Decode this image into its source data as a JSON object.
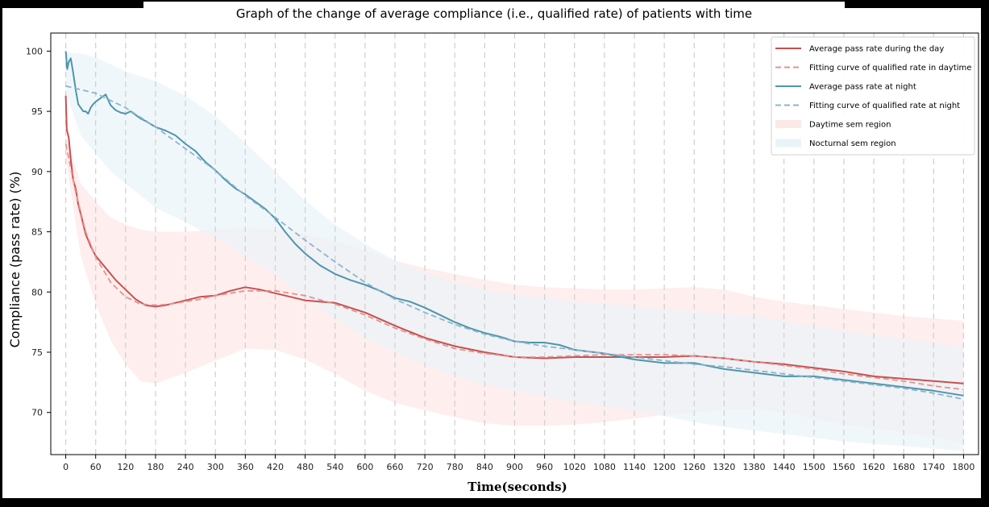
{
  "chart_data": {
    "type": "line",
    "title": "Graph of the change of average compliance (i.e., qualified rate) of patients with time",
    "xlabel": "Time(seconds)",
    "ylabel": "Compliance (pass rate)    (%)",
    "xlim": [
      -30,
      1830
    ],
    "ylim": [
      66.5,
      101.5
    ],
    "xticks": [
      0,
      60,
      120,
      180,
      240,
      300,
      360,
      420,
      480,
      540,
      600,
      660,
      720,
      780,
      840,
      900,
      960,
      1020,
      1080,
      1140,
      1200,
      1260,
      1320,
      1380,
      1440,
      1500,
      1560,
      1620,
      1680,
      1740,
      1800
    ],
    "yticks": [
      70,
      75,
      80,
      85,
      90,
      95,
      100
    ],
    "grid": "vertical dashed",
    "legend_position": "top-right",
    "legend": [
      "Average pass rate during the day",
      "Fitting curve of qualified rate in daytime",
      "Average pass rate at night",
      "Fitting curve of qualified rate at night",
      "Daytime sem region",
      "Nocturnal sem region"
    ],
    "series": [
      {
        "name": "Average pass rate during the day",
        "style": "solid",
        "color": "#c8504f",
        "x": [
          0,
          2,
          6,
          10,
          15,
          20,
          25,
          30,
          40,
          50,
          60,
          80,
          100,
          120,
          140,
          160,
          180,
          200,
          220,
          240,
          270,
          300,
          330,
          360,
          390,
          420,
          450,
          480,
          510,
          540,
          570,
          600,
          660,
          720,
          780,
          840,
          900,
          960,
          1020,
          1080,
          1140,
          1200,
          1260,
          1320,
          1380,
          1440,
          1500,
          1560,
          1620,
          1680,
          1740,
          1800
        ],
        "y": [
          96.3,
          93.5,
          92.8,
          91.0,
          89.3,
          88.6,
          87.3,
          86.5,
          84.8,
          83.8,
          83.0,
          82.0,
          81.0,
          80.2,
          79.4,
          78.9,
          78.8,
          78.9,
          79.1,
          79.3,
          79.6,
          79.7,
          80.1,
          80.4,
          80.2,
          79.9,
          79.6,
          79.3,
          79.2,
          79.1,
          78.7,
          78.3,
          77.2,
          76.2,
          75.5,
          75.0,
          74.6,
          74.5,
          74.6,
          74.6,
          74.6,
          74.6,
          74.7,
          74.5,
          74.2,
          74.0,
          73.7,
          73.4,
          73.0,
          72.8,
          72.6,
          72.4
        ]
      },
      {
        "name": "Fitting curve of qualified rate in daytime",
        "style": "dashed",
        "color": "#e29391",
        "x": [
          0,
          20,
          40,
          60,
          90,
          120,
          150,
          180,
          210,
          240,
          270,
          300,
          360,
          420,
          480,
          540,
          600,
          660,
          720,
          780,
          840,
          900,
          960,
          1020,
          1080,
          1140,
          1200,
          1260,
          1320,
          1380,
          1440,
          1500,
          1560,
          1620,
          1680,
          1740,
          1800
        ],
        "y": [
          92.3,
          88.3,
          85.0,
          82.9,
          80.8,
          79.6,
          79.0,
          78.9,
          79.0,
          79.2,
          79.4,
          79.7,
          80.1,
          80.1,
          79.7,
          79.0,
          78.1,
          77.0,
          76.1,
          75.3,
          74.9,
          74.6,
          74.6,
          74.7,
          74.8,
          74.8,
          74.8,
          74.7,
          74.5,
          74.2,
          73.9,
          73.6,
          73.2,
          72.9,
          72.6,
          72.2,
          71.9
        ]
      },
      {
        "name": "Average pass rate at night",
        "style": "solid",
        "color": "#4f95ac",
        "x": [
          0,
          3,
          6,
          10,
          15,
          20,
          25,
          30,
          35,
          40,
          45,
          50,
          55,
          60,
          70,
          80,
          90,
          100,
          110,
          120,
          130,
          140,
          150,
          160,
          180,
          200,
          220,
          240,
          260,
          280,
          300,
          320,
          340,
          360,
          380,
          400,
          420,
          440,
          460,
          480,
          510,
          540,
          570,
          600,
          630,
          660,
          690,
          720,
          750,
          780,
          810,
          840,
          870,
          900,
          930,
          960,
          990,
          1020,
          1080,
          1140,
          1200,
          1260,
          1320,
          1380,
          1440,
          1500,
          1560,
          1620,
          1680,
          1740,
          1800
        ],
        "y": [
          100.0,
          98.5,
          99.1,
          99.4,
          98.2,
          96.8,
          95.6,
          95.3,
          95.0,
          95.0,
          94.8,
          95.3,
          95.6,
          95.8,
          96.1,
          96.4,
          95.5,
          95.1,
          94.9,
          94.8,
          95.0,
          94.7,
          94.4,
          94.2,
          93.7,
          93.4,
          93.0,
          92.3,
          91.7,
          90.8,
          90.1,
          89.3,
          88.6,
          88.1,
          87.5,
          86.9,
          86.1,
          85.0,
          84.0,
          83.2,
          82.2,
          81.5,
          81.0,
          80.6,
          80.1,
          79.5,
          79.2,
          78.7,
          78.1,
          77.5,
          77.0,
          76.6,
          76.3,
          75.9,
          75.8,
          75.8,
          75.6,
          75.2,
          74.9,
          74.4,
          74.1,
          74.1,
          73.6,
          73.3,
          73.0,
          73.0,
          72.7,
          72.4,
          72.1,
          71.8,
          71.4
        ]
      },
      {
        "name": "Fitting curve of qualified rate at night",
        "style": "dashed",
        "color": "#8fb4cc",
        "x": [
          0,
          60,
          120,
          180,
          240,
          300,
          360,
          420,
          480,
          540,
          600,
          660,
          720,
          780,
          840,
          900,
          960,
          1020,
          1080,
          1140,
          1200,
          1260,
          1320,
          1380,
          1440,
          1500,
          1560,
          1620,
          1680,
          1740,
          1800
        ],
        "y": [
          97.1,
          96.5,
          95.3,
          93.7,
          91.9,
          90.1,
          88.0,
          86.2,
          84.3,
          82.5,
          80.8,
          79.4,
          78.3,
          77.3,
          76.5,
          75.9,
          75.5,
          75.2,
          74.9,
          74.6,
          74.3,
          74.0,
          73.8,
          73.5,
          73.2,
          72.9,
          72.6,
          72.3,
          72.0,
          71.6,
          71.1
        ]
      }
    ],
    "bands": [
      {
        "name": "Daytime sem region",
        "color": "#fde8e8",
        "x": [
          0,
          30,
          60,
          90,
          120,
          150,
          180,
          240,
          300,
          360,
          420,
          480,
          540,
          600,
          660,
          720,
          780,
          840,
          900,
          960,
          1020,
          1080,
          1140,
          1200,
          1260,
          1320,
          1380,
          1440,
          1500,
          1560,
          1620,
          1680,
          1740,
          1800
        ],
        "upper": [
          93.0,
          89.0,
          87.5,
          86.2,
          85.6,
          85.2,
          85.0,
          85.0,
          85.2,
          85.3,
          85.2,
          84.8,
          84.2,
          83.5,
          82.6,
          82.0,
          81.5,
          81.0,
          80.6,
          80.4,
          80.3,
          80.2,
          80.2,
          80.3,
          80.4,
          80.2,
          79.6,
          79.2,
          78.9,
          78.6,
          78.3,
          78.0,
          77.8,
          77.6
        ],
        "lower": [
          91.0,
          83.0,
          79.0,
          76.0,
          74.0,
          72.6,
          72.4,
          73.3,
          74.3,
          75.3,
          75.2,
          74.4,
          73.2,
          71.8,
          70.8,
          70.2,
          69.6,
          69.1,
          68.9,
          68.9,
          69.0,
          69.2,
          69.5,
          69.8,
          70.0,
          70.2,
          70.3,
          70.0,
          69.5,
          69.0,
          68.7,
          68.3,
          67.9,
          67.4
        ]
      },
      {
        "name": "Nocturnal sem region",
        "color": "#e9f3f8",
        "x": [
          0,
          30,
          60,
          90,
          120,
          180,
          240,
          300,
          360,
          420,
          480,
          540,
          600,
          660,
          720,
          780,
          840,
          900,
          960,
          1020,
          1080,
          1140,
          1200,
          1260,
          1320,
          1380,
          1440,
          1500,
          1560,
          1620,
          1680,
          1740,
          1800
        ],
        "upper": [
          99.9,
          99.8,
          99.5,
          98.9,
          98.3,
          97.5,
          96.3,
          94.6,
          92.4,
          90.0,
          87.6,
          85.6,
          84.0,
          82.6,
          81.6,
          80.8,
          80.2,
          79.8,
          79.5,
          79.2,
          79.0,
          78.8,
          78.6,
          78.4,
          78.2,
          78.0,
          77.6,
          77.2,
          76.8,
          76.4,
          76.1,
          75.8,
          75.4
        ],
        "lower": [
          96.5,
          93.0,
          91.5,
          90.0,
          89.0,
          87.0,
          85.8,
          84.5,
          83.0,
          81.5,
          79.5,
          77.8,
          76.2,
          75.0,
          73.9,
          73.0,
          72.3,
          71.8,
          71.3,
          70.9,
          70.5,
          70.1,
          69.7,
          69.2,
          68.8,
          68.5,
          68.2,
          67.9,
          67.6,
          67.4,
          67.2,
          67.0,
          66.8
        ]
      }
    ]
  }
}
